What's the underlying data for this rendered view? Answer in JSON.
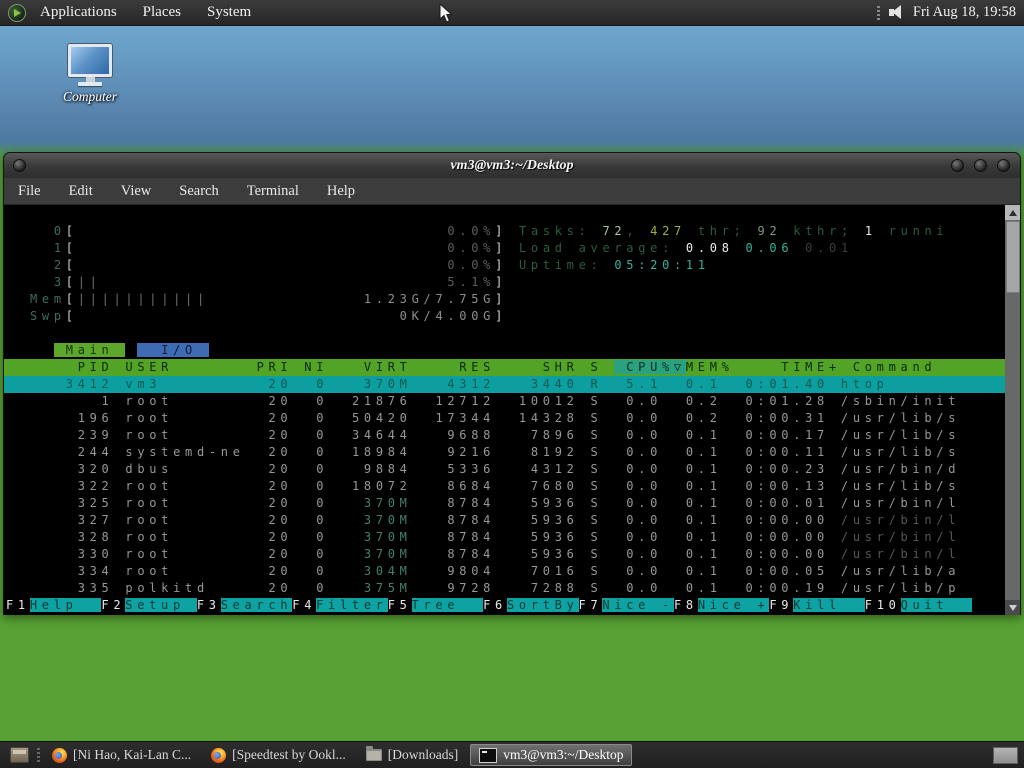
{
  "panel": {
    "menus": [
      {
        "label": "Applications"
      },
      {
        "label": "Places"
      },
      {
        "label": "System"
      }
    ],
    "clock": "Fri Aug 18, 19:58"
  },
  "desktop": {
    "computer_icon_label": "Computer"
  },
  "window": {
    "title": "vm3@vm3:~/Desktop",
    "menu_items": [
      "File",
      "Edit",
      "View",
      "Search",
      "Terminal",
      "Help"
    ]
  },
  "htop": {
    "lines": [
      {
        "c": "",
        "s": [
          [
            "mlab",
            "  0"
          ],
          [
            "brk",
            "["
          ],
          [
            "pct",
            "                               0.0%"
          ],
          [
            "brk",
            "]"
          ],
          [
            "pad",
            " "
          ],
          [
            "hlab",
            "Tasks: "
          ],
          [
            "g1",
            "72"
          ],
          [
            "hlab",
            ", "
          ],
          [
            "yel",
            "427"
          ],
          [
            "hlab",
            " thr; "
          ],
          [
            "g2",
            "92"
          ],
          [
            "hlab",
            " kthr; "
          ],
          [
            "wht",
            "1"
          ],
          [
            "hlab",
            " runni"
          ]
        ]
      },
      {
        "c": "",
        "s": [
          [
            "mlab",
            "  1"
          ],
          [
            "brk",
            "["
          ],
          [
            "pct",
            "                               0.0%"
          ],
          [
            "brk",
            "]"
          ],
          [
            "pad",
            " "
          ],
          [
            "hlab",
            "Load average: "
          ],
          [
            "wht",
            "0.08 "
          ],
          [
            "teal",
            "0.06 "
          ],
          [
            "dk",
            "0.01"
          ]
        ]
      },
      {
        "c": "",
        "s": [
          [
            "mlab",
            "  2"
          ],
          [
            "brk",
            "["
          ],
          [
            "pct",
            "                               0.0%"
          ],
          [
            "brk",
            "]"
          ],
          [
            "pad",
            " "
          ],
          [
            "hlab",
            "Uptime: "
          ],
          [
            "teal",
            "05:20:11"
          ]
        ]
      },
      {
        "c": "",
        "s": [
          [
            "mlab",
            "  3"
          ],
          [
            "brk",
            "["
          ],
          [
            "tick",
            "||"
          ],
          [
            "pct",
            "                             5.1%"
          ],
          [
            "brk",
            "]"
          ]
        ]
      },
      {
        "c": "",
        "s": [
          [
            "mlab",
            "Mem"
          ],
          [
            "brk",
            "["
          ],
          [
            "tick",
            "|||||||||||"
          ],
          [
            "memval",
            "             1.23G/7.75G"
          ],
          [
            "brk",
            "]"
          ]
        ]
      },
      {
        "c": "",
        "s": [
          [
            "mlab",
            "Swp"
          ],
          [
            "brk",
            "["
          ],
          [
            "memval",
            "                           0K/4.00G"
          ],
          [
            "brk",
            "]"
          ]
        ]
      },
      {
        "c": "",
        "s": [
          [
            "pad",
            ""
          ]
        ]
      },
      {
        "c": "",
        "s": [
          [
            "pad",
            "  "
          ],
          [
            "tabMain",
            " Main "
          ],
          [
            "pad",
            " "
          ],
          [
            "tabIO",
            "  I/O "
          ]
        ]
      },
      {
        "c": "hdr",
        "s": [
          [
            "hdrTxt",
            "    PID USER       PRI NI   VIRT    RES    SHR S "
          ],
          [
            "hdrSort",
            " CPU%▽"
          ],
          [
            "hdrTxt",
            "MEM%    TIME+ Command"
          ]
        ]
      },
      {
        "c": "sel",
        "s": [
          [
            "selTxt",
            "   3412 vm3         20  0   370M   4312   3440 R  5.1  0.1  0:01.40 htop"
          ]
        ]
      },
      {
        "c": "",
        "s": [
          [
            "rt",
            "      1 root        20  0 "
          ],
          [
            "rt",
            " 21876"
          ],
          [
            "rt",
            "  12712  10012 S  0.0  0.2  0:01.28 "
          ],
          [
            "rt",
            "/sbin/init"
          ]
        ]
      },
      {
        "c": "",
        "s": [
          [
            "rt",
            "    196 root        20  0 "
          ],
          [
            "rt",
            " 50420"
          ],
          [
            "rt",
            "  17344  14328 S  0.0  0.2  0:00.31 "
          ],
          [
            "rt",
            "/usr/lib/s"
          ]
        ]
      },
      {
        "c": "",
        "s": [
          [
            "rt",
            "    239 root        20  0 "
          ],
          [
            "rt",
            " 34644"
          ],
          [
            "rt",
            "   9688   7896 S  0.0  0.1  0:00.17 "
          ],
          [
            "rt",
            "/usr/lib/s"
          ]
        ]
      },
      {
        "c": "",
        "s": [
          [
            "rt",
            "    244 systemd-ne  20  0 "
          ],
          [
            "rt",
            " 18984"
          ],
          [
            "rt",
            "   9216   8192 S  0.0  0.1  0:00.11 "
          ],
          [
            "rt",
            "/usr/lib/s"
          ]
        ]
      },
      {
        "c": "",
        "s": [
          [
            "rt",
            "    320 dbus        20  0 "
          ],
          [
            "rt",
            "  9884"
          ],
          [
            "rt",
            "   5336   4312 S  0.0  0.1  0:00.23 "
          ],
          [
            "rt",
            "/usr/bin/d"
          ]
        ]
      },
      {
        "c": "",
        "s": [
          [
            "rt",
            "    322 root        20  0 "
          ],
          [
            "rt",
            " 18072"
          ],
          [
            "rt",
            "   8684   7680 S  0.0  0.1  0:00.13 "
          ],
          [
            "rt",
            "/usr/lib/s"
          ]
        ]
      },
      {
        "c": "",
        "s": [
          [
            "rt",
            "    325 root        20  0 "
          ],
          [
            "vm",
            "  370M"
          ],
          [
            "rt",
            "   8784   5936 S  0.0  0.1  0:00.01 "
          ],
          [
            "rt",
            "/usr/bin/l"
          ]
        ]
      },
      {
        "c": "",
        "s": [
          [
            "rt",
            "    327 root        20  0 "
          ],
          [
            "vm",
            "  370M"
          ],
          [
            "rt",
            "   8784   5936 S  0.0  0.1  0:00.00 "
          ],
          [
            "rcdim",
            "/usr/bin/l"
          ]
        ]
      },
      {
        "c": "",
        "s": [
          [
            "rt",
            "    328 root        20  0 "
          ],
          [
            "vm",
            "  370M"
          ],
          [
            "rt",
            "   8784   5936 S  0.0  0.1  0:00.00 "
          ],
          [
            "rcdim",
            "/usr/bin/l"
          ]
        ]
      },
      {
        "c": "",
        "s": [
          [
            "rt",
            "    330 root        20  0 "
          ],
          [
            "vm",
            "  370M"
          ],
          [
            "rt",
            "   8784   5936 S  0.0  0.1  0:00.00 "
          ],
          [
            "rcdim",
            "/usr/bin/l"
          ]
        ]
      },
      {
        "c": "",
        "s": [
          [
            "rt",
            "    334 root        20  0 "
          ],
          [
            "vm",
            "  304M"
          ],
          [
            "rt",
            "   9804   7016 S  0.0  0.1  0:00.05 "
          ],
          [
            "rt",
            "/usr/lib/a"
          ]
        ]
      },
      {
        "c": "",
        "s": [
          [
            "rt",
            "    335 polkitd     20  0 "
          ],
          [
            "vm",
            "  375M"
          ],
          [
            "rt",
            "   9728   7288 S  0.0  0.1  0:00.19 "
          ],
          [
            "rt",
            "/usr/lib/p"
          ]
        ]
      },
      {
        "c": "fbar",
        "s": [
          [
            "fk",
            "F1"
          ],
          [
            "fl",
            "Help  "
          ],
          [
            "fk",
            "F2"
          ],
          [
            "fl",
            "Setup "
          ],
          [
            "fk",
            "F3"
          ],
          [
            "fl",
            "Search"
          ],
          [
            "fk",
            "F4"
          ],
          [
            "fl",
            "Filter"
          ],
          [
            "fk",
            "F5"
          ],
          [
            "fl",
            "Tree  "
          ],
          [
            "fk",
            "F6"
          ],
          [
            "fl",
            "SortBy"
          ],
          [
            "fk",
            "F7"
          ],
          [
            "fl",
            "Nice -"
          ],
          [
            "fk",
            "F8"
          ],
          [
            "fl",
            "Nice +"
          ],
          [
            "fk",
            "F9"
          ],
          [
            "fl",
            "Kill  "
          ],
          [
            "fk",
            "F10"
          ],
          [
            "fl",
            "Quit  "
          ]
        ]
      }
    ]
  },
  "taskbar": {
    "items": [
      {
        "label": "[Ni Hao, Kai-Lan C...",
        "icon": "firefox",
        "active": false
      },
      {
        "label": "[Speedtest by Ookl...",
        "icon": "firefox",
        "active": false
      },
      {
        "label": "[Downloads]",
        "icon": "folder",
        "active": false
      },
      {
        "label": "vm3@vm3:~/Desktop",
        "icon": "terminal",
        "active": true
      }
    ]
  }
}
